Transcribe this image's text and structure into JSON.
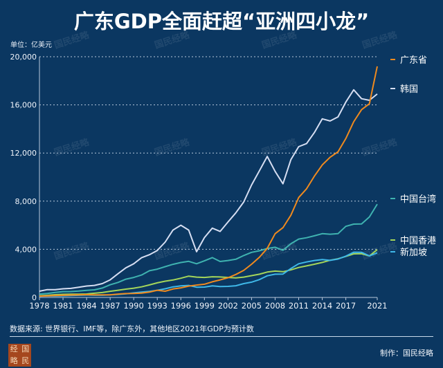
{
  "title": "广东GDP全面赶超“亚洲四小龙”",
  "unit_label": "单位：亿美元",
  "footnote": "数据来源: 世界银行、IMF等，除广东外，其他地区2021年GDP为预计数",
  "credit": "制作：国民经略",
  "logo_text": [
    "经",
    "国",
    "略",
    "民"
  ],
  "watermark": "国民经略",
  "chart_data": {
    "type": "line",
    "title": "广东GDP全面赶超“亚洲四小龙”",
    "ylabel": "单位：亿美元",
    "ylim": [
      0,
      20000
    ],
    "yticks": [
      0,
      4000,
      8000,
      12000,
      16000,
      20000
    ],
    "ytick_labels": [
      "0",
      "4,000",
      "8,000",
      "12,000",
      "16,000",
      "20,000"
    ],
    "xlim": [
      1978,
      2021
    ],
    "xticks": [
      1978,
      1981,
      1984,
      1987,
      1990,
      1993,
      1996,
      1999,
      2002,
      2005,
      2008,
      2011,
      2014,
      2017,
      2021
    ],
    "xtick_labels": [
      "1978",
      "1981",
      "1984",
      "1987",
      "1990",
      "1993",
      "1996",
      "1999",
      "2002",
      "2005",
      "2008",
      "2011",
      "2014",
      "2017",
      "2021"
    ],
    "grid": true,
    "legend": "right",
    "x": [
      1978,
      1979,
      1980,
      1981,
      1982,
      1983,
      1984,
      1985,
      1986,
      1987,
      1988,
      1989,
      1990,
      1991,
      1992,
      1993,
      1994,
      1995,
      1996,
      1997,
      1998,
      1999,
      2000,
      2001,
      2002,
      2003,
      2004,
      2005,
      2006,
      2007,
      2008,
      2009,
      2010,
      2011,
      2012,
      2013,
      2014,
      2015,
      2016,
      2017,
      2018,
      2019,
      2020,
      2021
    ],
    "series": [
      {
        "name": "广东省",
        "color": "#f08a1e",
        "values": [
          110,
          130,
          160,
          180,
          200,
          210,
          230,
          220,
          210,
          220,
          280,
          320,
          330,
          360,
          440,
          600,
          520,
          700,
          800,
          940,
          1030,
          1100,
          1300,
          1460,
          1640,
          1910,
          2250,
          2760,
          3340,
          4080,
          5300,
          5800,
          6830,
          8300,
          9030,
          10080,
          11010,
          11650,
          12100,
          13200,
          14600,
          15600,
          16100,
          19200
        ]
      },
      {
        "name": "韩国",
        "color": "#d6def2",
        "values": [
          520,
          650,
          650,
          720,
          750,
          850,
          950,
          1000,
          1150,
          1460,
          1970,
          2460,
          2800,
          3300,
          3550,
          3900,
          4600,
          5600,
          6000,
          5600,
          3800,
          4970,
          5760,
          5480,
          6270,
          7030,
          7930,
          9340,
          10530,
          11720,
          10470,
          9440,
          11440,
          12530,
          12780,
          13700,
          14840,
          14660,
          15000,
          16230,
          17250,
          16510,
          16380,
          16900
        ]
      },
      {
        "name": "中国台湾",
        "color": "#3fb3b0",
        "values": [
          270,
          330,
          420,
          480,
          490,
          530,
          590,
          630,
          780,
          1050,
          1250,
          1520,
          1660,
          1860,
          2220,
          2350,
          2560,
          2750,
          2900,
          3000,
          2800,
          3040,
          3310,
          2990,
          3070,
          3170,
          3480,
          3750,
          3880,
          4070,
          4170,
          3920,
          4460,
          4850,
          4960,
          5120,
          5300,
          5250,
          5300,
          5910,
          6090,
          6110,
          6690,
          7750
        ]
      },
      {
        "name": "中国香港",
        "color": "#a5d65a",
        "values": [
          140,
          180,
          230,
          260,
          270,
          270,
          290,
          350,
          410,
          510,
          600,
          690,
          770,
          880,
          1040,
          1210,
          1350,
          1450,
          1600,
          1770,
          1690,
          1660,
          1720,
          1700,
          1660,
          1620,
          1690,
          1810,
          1930,
          2110,
          2190,
          2140,
          2290,
          2490,
          2620,
          2760,
          2910,
          3090,
          3210,
          3410,
          3620,
          3630,
          3450,
          3970
        ]
      },
      {
        "name": "新加坡",
        "color": "#3fb8e8",
        "values": [
          100,
          120,
          120,
          140,
          160,
          180,
          200,
          190,
          190,
          210,
          250,
          300,
          380,
          440,
          500,
          600,
          720,
          880,
          960,
          1000,
          850,
          860,
          960,
          900,
          920,
          970,
          1150,
          1270,
          1480,
          1800,
          1930,
          1940,
          2400,
          2800,
          2950,
          3070,
          3150,
          3080,
          3190,
          3430,
          3760,
          3750,
          3450,
          3700
        ]
      }
    ]
  }
}
